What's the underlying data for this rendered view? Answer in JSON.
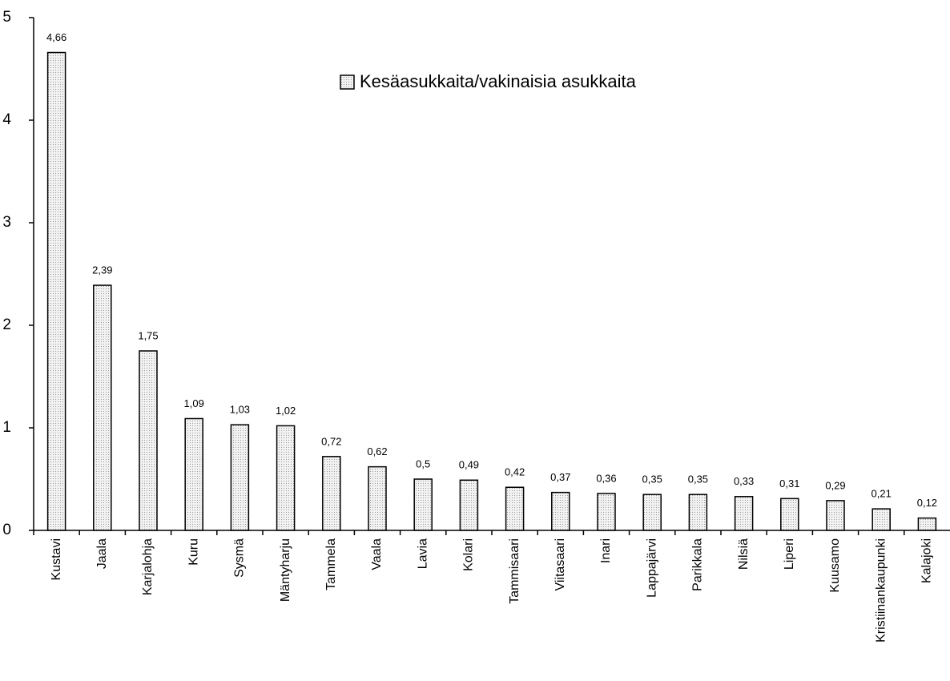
{
  "chart_data": {
    "type": "bar",
    "categories": [
      "Kustavi",
      "Jaala",
      "Karjalohja",
      "Kuru",
      "Sysmä",
      "Mäntyharju",
      "Tammela",
      "Vaala",
      "Lavia",
      "Kolari",
      "Tammisaari",
      "Viitasaari",
      "Inari",
      "Lappajärvi",
      "Parikkala",
      "Nilsiä",
      "Liperi",
      "Kuusamo",
      "Kristiinankaupunki",
      "Kalajoki"
    ],
    "series": [
      {
        "name": "Kesäasukkaita/vakinaisia asukkaita",
        "color": "#d9d9d9",
        "values": [
          4.66,
          2.39,
          1.75,
          1.09,
          1.03,
          1.02,
          0.72,
          0.62,
          0.5,
          0.49,
          0.42,
          0.37,
          0.36,
          0.35,
          0.35,
          0.33,
          0.31,
          0.29,
          0.21,
          0.12
        ],
        "value_labels": [
          "4,66",
          "2,39",
          "1,75",
          "1,09",
          "1,03",
          "1,02",
          "0,72",
          "0,62",
          "0,5",
          "0,49",
          "0,42",
          "0,37",
          "0,36",
          "0,35",
          "0,35",
          "0,33",
          "0,31",
          "0,29",
          "0,21",
          "0,12"
        ]
      }
    ],
    "ylim": [
      0,
      5
    ],
    "yticks": [
      0,
      1,
      2,
      3,
      4,
      5
    ],
    "grid": false
  }
}
